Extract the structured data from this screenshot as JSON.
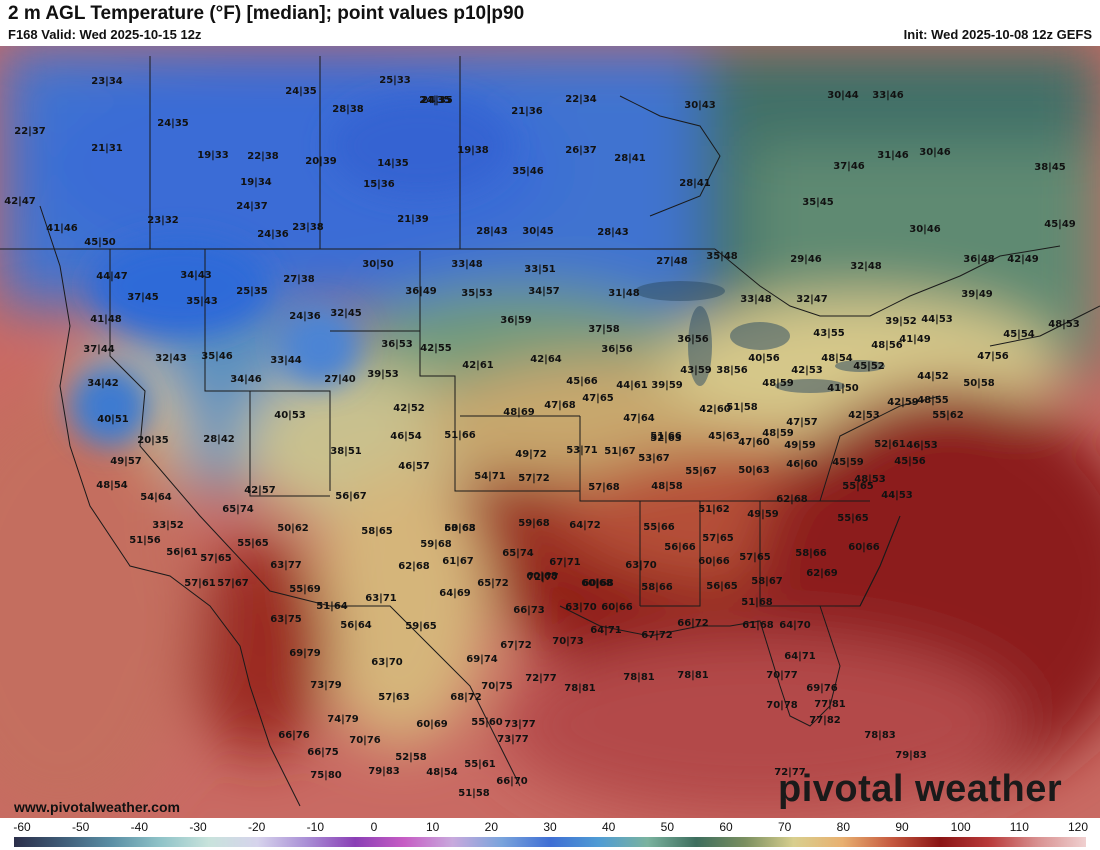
{
  "header": {
    "title": "2 m AGL Temperature (°F) [median]; point values p10|p90",
    "valid": "F168 Valid: Wed 2025-10-15 12z",
    "init": "Init: Wed 2025-10-08 12z GEFS"
  },
  "credit": "www.pivotalweather.com",
  "logo": "pivotal weather",
  "colorbar": {
    "ticks": [
      "-60",
      "-50",
      "-40",
      "-30",
      "-20",
      "-10",
      "0",
      "10",
      "20",
      "30",
      "40",
      "50",
      "60",
      "70",
      "80",
      "90",
      "100",
      "110",
      "120"
    ],
    "colors": [
      "#2b2f4a",
      "#3f5d78",
      "#5a8fa5",
      "#8fc3c8",
      "#c8e3dc",
      "#d6d3ec",
      "#a98fd6",
      "#8a3fb5",
      "#c65cc4",
      "#c8a9dd",
      "#7aa4dc",
      "#3f6fd4",
      "#4f9cd4",
      "#7ab39f",
      "#3d6e5e",
      "#7a8f60",
      "#d8cf8e",
      "#e8b070",
      "#c65a40",
      "#8a1414",
      "#b83a3a",
      "#d89090",
      "#f0d0d0"
    ]
  },
  "point_values": [
    {
      "t": "23|34"
    },
    {
      "t": "24|35"
    },
    {
      "t": "22|37"
    },
    {
      "t": "24|35"
    },
    {
      "t": "21|31"
    },
    {
      "t": "19|33"
    },
    {
      "t": "22|38"
    },
    {
      "t": "24|35"
    },
    {
      "t": "28|38"
    },
    {
      "t": "25|33"
    },
    {
      "t": "24|35"
    },
    {
      "t": "21|36"
    },
    {
      "t": "22|34"
    },
    {
      "t": "30|43"
    },
    {
      "t": "30|44"
    },
    {
      "t": "33|46"
    },
    {
      "t": "42|47"
    },
    {
      "t": "19|34"
    },
    {
      "t": "20|39"
    },
    {
      "t": "14|35"
    },
    {
      "t": "15|36"
    },
    {
      "t": "19|38"
    },
    {
      "t": "35|46"
    },
    {
      "t": "26|37"
    },
    {
      "t": "28|41"
    },
    {
      "t": "37|46"
    },
    {
      "t": "31|46"
    },
    {
      "t": "30|46"
    },
    {
      "t": "38|45"
    },
    {
      "t": "23|32"
    },
    {
      "t": "24|37"
    },
    {
      "t": "21|39"
    },
    {
      "t": "28|41"
    },
    {
      "t": "35|45"
    },
    {
      "t": "41|46"
    },
    {
      "t": "24|36"
    },
    {
      "t": "23|38"
    },
    {
      "t": "28|43"
    },
    {
      "t": "30|45"
    },
    {
      "t": "28|43"
    },
    {
      "t": "30|46"
    },
    {
      "t": "45|49"
    },
    {
      "t": "45|50"
    },
    {
      "t": "27|48"
    },
    {
      "t": "35|48"
    },
    {
      "t": "29|46"
    },
    {
      "t": "32|48"
    },
    {
      "t": "36|48"
    },
    {
      "t": "42|49"
    },
    {
      "t": "44|47"
    },
    {
      "t": "34|43"
    },
    {
      "t": "27|38"
    },
    {
      "t": "30|50"
    },
    {
      "t": "33|48"
    },
    {
      "t": "33|51"
    },
    {
      "t": "37|45"
    },
    {
      "t": "35|43"
    },
    {
      "t": "25|35"
    },
    {
      "t": "36|49"
    },
    {
      "t": "35|53"
    },
    {
      "t": "34|57"
    },
    {
      "t": "31|48"
    },
    {
      "t": "33|48"
    },
    {
      "t": "32|47"
    },
    {
      "t": "39|49"
    },
    {
      "t": "41|48"
    },
    {
      "t": "24|36"
    },
    {
      "t": "32|45"
    },
    {
      "t": "36|59"
    },
    {
      "t": "37|58"
    },
    {
      "t": "39|52"
    },
    {
      "t": "44|53"
    },
    {
      "t": "45|54"
    },
    {
      "t": "48|53"
    },
    {
      "t": "37|44"
    },
    {
      "t": "32|43"
    },
    {
      "t": "35|46"
    },
    {
      "t": "33|44"
    },
    {
      "t": "36|53"
    },
    {
      "t": "42|55"
    },
    {
      "t": "36|56"
    },
    {
      "t": "36|56"
    },
    {
      "t": "43|55"
    },
    {
      "t": "41|49"
    },
    {
      "t": "48|56"
    },
    {
      "t": "47|56"
    },
    {
      "t": "34|42"
    },
    {
      "t": "34|46"
    },
    {
      "t": "27|40"
    },
    {
      "t": "39|53"
    },
    {
      "t": "42|61"
    },
    {
      "t": "42|64"
    },
    {
      "t": "40|56"
    },
    {
      "t": "48|54"
    },
    {
      "t": "45|52"
    },
    {
      "t": "45|66"
    },
    {
      "t": "43|59"
    },
    {
      "t": "38|56"
    },
    {
      "t": "42|53"
    },
    {
      "t": "44|52"
    },
    {
      "t": "50|58"
    },
    {
      "t": "40|51"
    },
    {
      "t": "40|53"
    },
    {
      "t": "42|52"
    },
    {
      "t": "48|69"
    },
    {
      "t": "47|68"
    },
    {
      "t": "47|65"
    },
    {
      "t": "44|61"
    },
    {
      "t": "39|59"
    },
    {
      "t": "48|59"
    },
    {
      "t": "41|50"
    },
    {
      "t": "48|55"
    },
    {
      "t": "20|35"
    },
    {
      "t": "28|42"
    },
    {
      "t": "46|54"
    },
    {
      "t": "51|66"
    },
    {
      "t": "47|64"
    },
    {
      "t": "52|63"
    },
    {
      "t": "42|60"
    },
    {
      "t": "51|58"
    },
    {
      "t": "47|57"
    },
    {
      "t": "42|53"
    },
    {
      "t": "42|59"
    },
    {
      "t": "55|62"
    },
    {
      "t": "49|57"
    },
    {
      "t": "38|51"
    },
    {
      "t": "46|57"
    },
    {
      "t": "49|72"
    },
    {
      "t": "53|71"
    },
    {
      "t": "51|67"
    },
    {
      "t": "51|66"
    },
    {
      "t": "45|63"
    },
    {
      "t": "48|59"
    },
    {
      "t": "47|60"
    },
    {
      "t": "49|59"
    },
    {
      "t": "52|61"
    },
    {
      "t": "46|53"
    },
    {
      "t": "54|71"
    },
    {
      "t": "57|72"
    },
    {
      "t": "53|67"
    },
    {
      "t": "55|67"
    },
    {
      "t": "50|63"
    },
    {
      "t": "46|60"
    },
    {
      "t": "45|59"
    },
    {
      "t": "45|56"
    },
    {
      "t": "42|57"
    },
    {
      "t": "56|67"
    },
    {
      "t": "57|68"
    },
    {
      "t": "48|58"
    },
    {
      "t": "55|65"
    },
    {
      "t": "48|53"
    },
    {
      "t": "48|54"
    },
    {
      "t": "54|64"
    },
    {
      "t": "65|74"
    },
    {
      "t": "59|68"
    },
    {
      "t": "60|68"
    },
    {
      "t": "64|72"
    },
    {
      "t": "55|66"
    },
    {
      "t": "51|62"
    },
    {
      "t": "49|59"
    },
    {
      "t": "62|68"
    },
    {
      "t": "44|53"
    },
    {
      "t": "33|52"
    },
    {
      "t": "50|62"
    },
    {
      "t": "58|65"
    },
    {
      "t": "59|68"
    },
    {
      "t": "53|63"
    },
    {
      "t": "57|65"
    },
    {
      "t": "55|65"
    },
    {
      "t": "51|56"
    },
    {
      "t": "55|65"
    },
    {
      "t": "56|61"
    },
    {
      "t": "57|65"
    },
    {
      "t": "61|67"
    },
    {
      "t": "65|74"
    },
    {
      "t": "56|66"
    },
    {
      "t": "60|66"
    },
    {
      "t": "57|65"
    },
    {
      "t": "58|66"
    },
    {
      "t": "60|66"
    },
    {
      "t": "57|61"
    },
    {
      "t": "57|67"
    },
    {
      "t": "63|77"
    },
    {
      "t": "62|68"
    },
    {
      "t": "67|71"
    },
    {
      "t": "63|70"
    },
    {
      "t": "60|68"
    },
    {
      "t": "60|68"
    },
    {
      "t": "58|67"
    },
    {
      "t": "55|69"
    },
    {
      "t": "65|72"
    },
    {
      "t": "72|77"
    },
    {
      "t": "60|68"
    },
    {
      "t": "58|66"
    },
    {
      "t": "56|65"
    },
    {
      "t": "62|69"
    },
    {
      "t": "51|64"
    },
    {
      "t": "63|71"
    },
    {
      "t": "64|69"
    },
    {
      "t": "66|73"
    },
    {
      "t": "63|70"
    },
    {
      "t": "60|66"
    },
    {
      "t": "51|68"
    },
    {
      "t": "63|75"
    },
    {
      "t": "56|64"
    },
    {
      "t": "59|65"
    },
    {
      "t": "70|73"
    },
    {
      "t": "64|71"
    },
    {
      "t": "67|72"
    },
    {
      "t": "66|72"
    },
    {
      "t": "61|68"
    },
    {
      "t": "64|70"
    },
    {
      "t": "69|79"
    },
    {
      "t": "63|70"
    },
    {
      "t": "69|74"
    },
    {
      "t": "67|72"
    },
    {
      "t": "64|71"
    },
    {
      "t": "73|79"
    },
    {
      "t": "70|75"
    },
    {
      "t": "72|77"
    },
    {
      "t": "78|81"
    },
    {
      "t": "78|81"
    },
    {
      "t": "78|81"
    },
    {
      "t": "70|77"
    },
    {
      "t": "69|76"
    },
    {
      "t": "57|63"
    },
    {
      "t": "68|72"
    },
    {
      "t": "74|79"
    },
    {
      "t": "70|78"
    },
    {
      "t": "77|81"
    },
    {
      "t": "73|77"
    },
    {
      "t": "77|82"
    },
    {
      "t": "66|76"
    },
    {
      "t": "70|76"
    },
    {
      "t": "60|69"
    },
    {
      "t": "55|60"
    },
    {
      "t": "73|77"
    },
    {
      "t": "78|83"
    },
    {
      "t": "66|75"
    },
    {
      "t": "52|58"
    },
    {
      "t": "79|83"
    },
    {
      "t": "55|61"
    },
    {
      "t": "75|80"
    },
    {
      "t": "79|83"
    },
    {
      "t": "48|54"
    },
    {
      "t": "66|70"
    },
    {
      "t": "72|77"
    },
    {
      "t": "51|58"
    }
  ]
}
